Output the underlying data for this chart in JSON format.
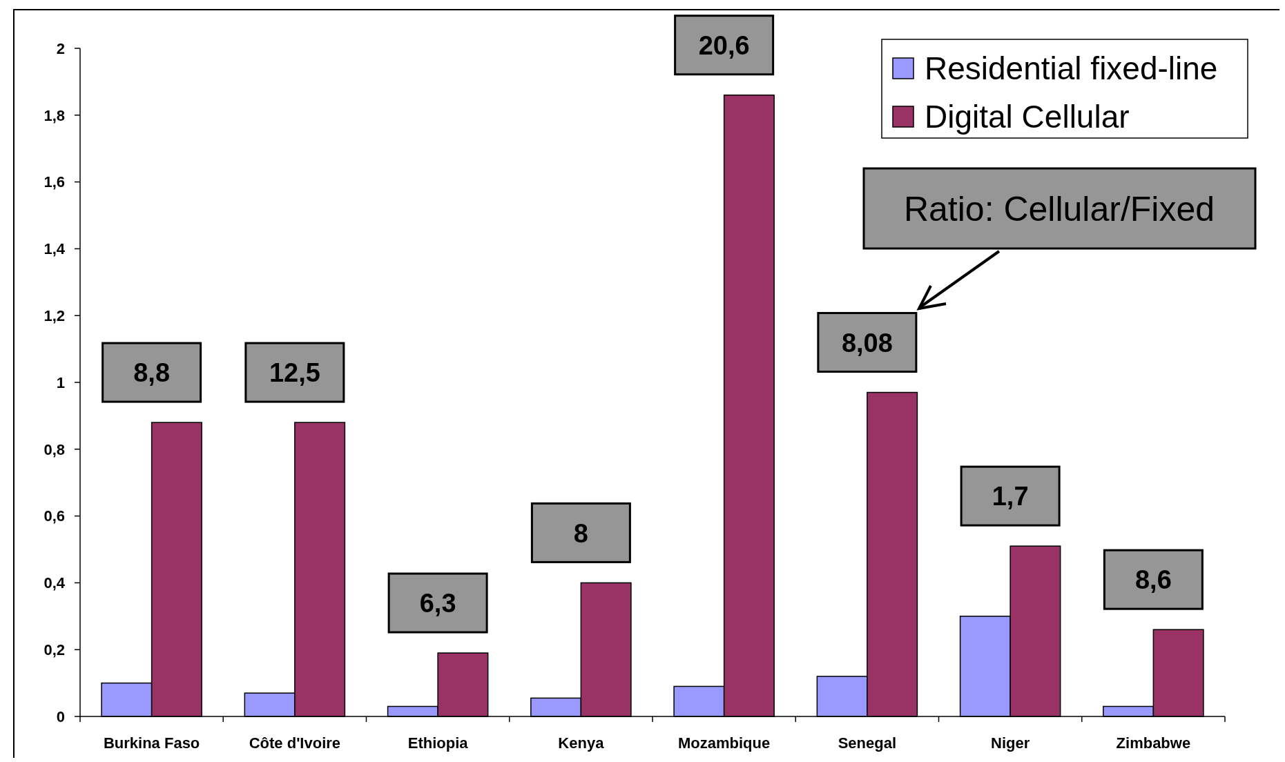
{
  "chart_data": {
    "type": "bar",
    "categories": [
      "Burkina Faso",
      "Côte d'Ivoire",
      "Ethiopia",
      "Kenya",
      "Mozambique",
      "Senegal",
      "Niger",
      "Zimbabwe"
    ],
    "series": [
      {
        "name": "Residential fixed-line",
        "color": "#9999ff",
        "values": [
          0.1,
          0.07,
          0.03,
          0.055,
          0.09,
          0.12,
          0.3,
          0.03
        ]
      },
      {
        "name": "Digital Cellular",
        "color": "#993366",
        "values": [
          0.88,
          0.88,
          0.19,
          0.4,
          1.86,
          0.97,
          0.51,
          0.26
        ]
      }
    ],
    "ylim": [
      0,
      2
    ],
    "yticks": [
      0,
      {
        "value": 0.2,
        "label": "0,2"
      },
      {
        "value": 0.4,
        "label": "0,4"
      },
      {
        "value": 0.6,
        "label": "0,6"
      },
      {
        "value": 0.8,
        "label": "0,8"
      },
      1,
      {
        "value": 1.2,
        "label": "1,2"
      },
      {
        "value": 1.4,
        "label": "1,4"
      },
      {
        "value": 1.6,
        "label": "1,6"
      },
      {
        "value": 1.8,
        "label": "1,8"
      },
      2
    ],
    "grid": false,
    "legend": "top right",
    "annotations": [
      {
        "text": "8,8",
        "x": "Burkina Faso",
        "y": 0.88
      },
      {
        "text": "12,5",
        "x": "Côte d'Ivoire",
        "y": 0.88
      },
      {
        "text": "6,3",
        "x": "Ethiopia",
        "y": 0.19
      },
      {
        "text": "8",
        "x": "Kenya",
        "y": 0.4
      },
      {
        "text": "20,6",
        "x": "Mozambique",
        "y": 1.86
      },
      {
        "text": "8,08",
        "x": "Senegal",
        "y": 0.97
      },
      {
        "text": "1,7",
        "x": "Niger",
        "y": 0.51
      },
      {
        "text": "8,6",
        "x": "Zimbabwe",
        "y": 0.26
      },
      "Ratio: Cellular/Fixed"
    ]
  }
}
